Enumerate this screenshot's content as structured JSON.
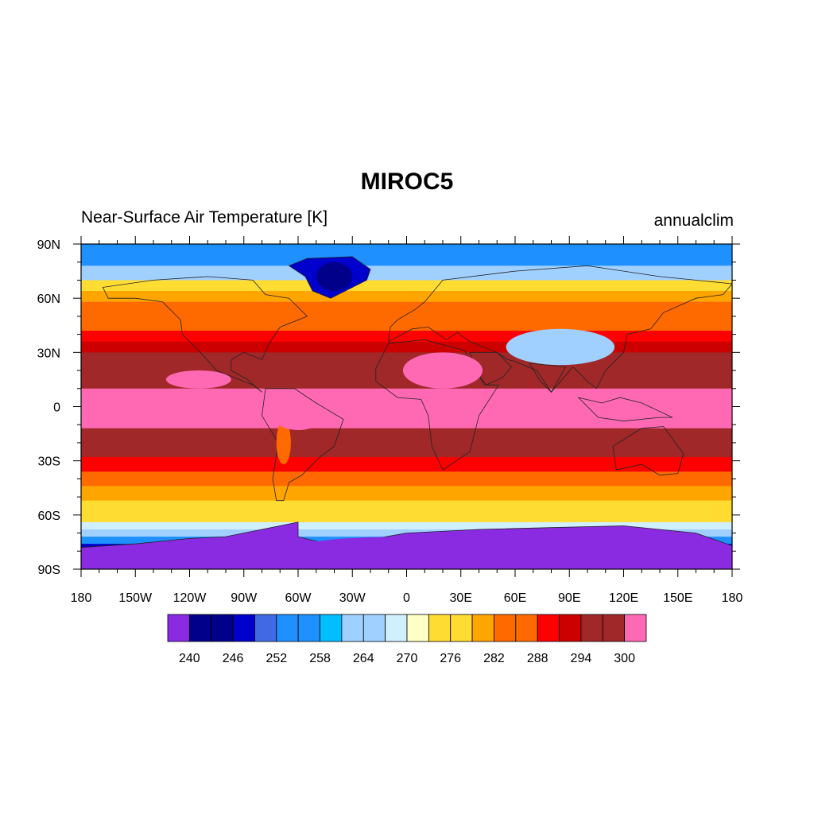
{
  "title": "MIROC5",
  "left_subtitle": "Near-Surface Air Temperature [K]",
  "right_subtitle": "annualclim",
  "map": {
    "projection": "cylindrical-equidistant",
    "lon_range": [
      -180,
      180
    ],
    "lat_range": [
      -90,
      90
    ],
    "lat_tick_labels": [
      "90N",
      "60N",
      "30N",
      "0",
      "30S",
      "60S",
      "90S"
    ],
    "lon_tick_labels": [
      "180",
      "150W",
      "120W",
      "90W",
      "60W",
      "30W",
      "0",
      "30E",
      "60E",
      "90E",
      "120E",
      "150E",
      "180"
    ]
  },
  "colorbar": {
    "colors": [
      "#8a2be2",
      "#00008b",
      "#00008b",
      "#0000cd",
      "#4169e1",
      "#1e90ff",
      "#1e90ff",
      "#00bfff",
      "#a0d0ff",
      "#a0d0ff",
      "#d0f0ff",
      "#ffffc8",
      "#ffdc32",
      "#ffdc32",
      "#ffa500",
      "#ff6a00",
      "#ff6a00",
      "#ff0000",
      "#cd0000",
      "#a02828",
      "#a02828",
      "#ff69b4"
    ],
    "labels": [
      "240",
      "246",
      "252",
      "258",
      "264",
      "270",
      "276",
      "282",
      "288",
      "294",
      "300"
    ]
  }
}
